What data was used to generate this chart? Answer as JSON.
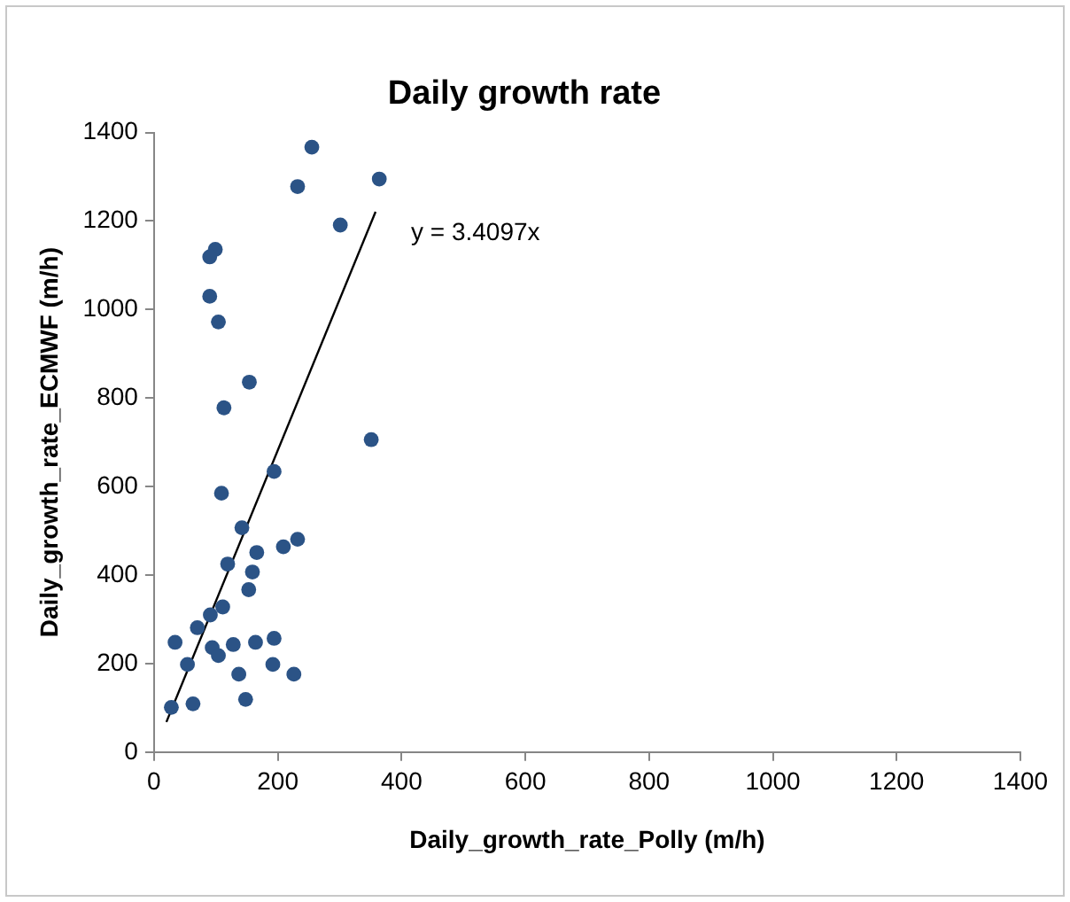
{
  "chart_data": {
    "type": "scatter",
    "title": "Daily growth rate",
    "xlabel": "Daily_growth_rate_Polly (m/h)",
    "ylabel": "Daily_growth_rate_ECMWF (m/h)",
    "xlim": [
      0,
      1400
    ],
    "xticks": [
      0,
      200,
      400,
      600,
      800,
      1000,
      1200,
      1400
    ],
    "ylim": [
      0,
      1400
    ],
    "yticks": [
      0,
      200,
      400,
      600,
      800,
      1000,
      1200,
      1400
    ],
    "grid": false,
    "legend": false,
    "marker": "circle",
    "annotations": [
      "y = 3.4097x"
    ],
    "series": [
      {
        "color": "#2b5386",
        "x": [
          255,
          232,
          364,
          301,
          99,
          90,
          90,
          104,
          154,
          113,
          351,
          194,
          109,
          142,
          232,
          209,
          166,
          119,
          159,
          153,
          111,
          91,
          70,
          34,
          94,
          104,
          128,
          164,
          194,
          54,
          192,
          137,
          226,
          28,
          63,
          148
        ],
        "values": [
          1367,
          1278,
          1295,
          1191,
          1136,
          1119,
          1030,
          972,
          836,
          778,
          706,
          634,
          585,
          507,
          481,
          464,
          451,
          425,
          407,
          367,
          328,
          310,
          281,
          248,
          236,
          218,
          243,
          248,
          257,
          198,
          198,
          176,
          176,
          101,
          109,
          119
        ]
      },
      {
        "type": "line",
        "color": "#000000",
        "marker": "none",
        "x": [
          20,
          358
        ],
        "values": [
          68,
          1221
        ]
      }
    ]
  }
}
